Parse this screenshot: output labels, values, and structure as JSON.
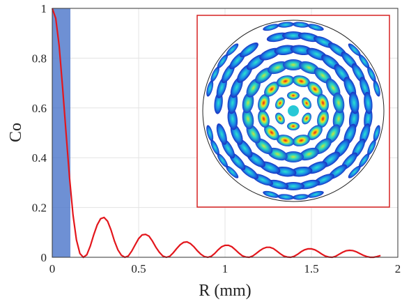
{
  "chart_data": {
    "type": "line",
    "title": "",
    "xlabel": "R (mm)",
    "ylabel": "Co",
    "xlim": [
      0,
      2
    ],
    "ylim": [
      0,
      1
    ],
    "xticks": [
      "0",
      "0.5",
      "1",
      "1.5",
      "2"
    ],
    "yticks": [
      "0",
      "0.2",
      "0.4",
      "0.6",
      "0.8",
      "1"
    ],
    "grid": true,
    "shaded_region": {
      "x": [
        0,
        0.105
      ],
      "color": "#4a74c9"
    },
    "series": [
      {
        "color": "#e3161c",
        "x": [
          0,
          0.02,
          0.04,
          0.06,
          0.08,
          0.1,
          0.12,
          0.14,
          0.16,
          0.18,
          0.2,
          0.22,
          0.24,
          0.26,
          0.28,
          0.3,
          0.32,
          0.34,
          0.36,
          0.38,
          0.4,
          0.42,
          0.44,
          0.46,
          0.48,
          0.5,
          0.52,
          0.54,
          0.56,
          0.58,
          0.6,
          0.62,
          0.64,
          0.66,
          0.68,
          0.7,
          0.72,
          0.74,
          0.76,
          0.78,
          0.8,
          0.82,
          0.84,
          0.86,
          0.88,
          0.9,
          0.92,
          0.94,
          0.96,
          0.98,
          1.0,
          1.02,
          1.04,
          1.06,
          1.08,
          1.1,
          1.12,
          1.14,
          1.16,
          1.18,
          1.2,
          1.22,
          1.24,
          1.26,
          1.28,
          1.3,
          1.32,
          1.34,
          1.36,
          1.38,
          1.4,
          1.42,
          1.44,
          1.46,
          1.48,
          1.5,
          1.52,
          1.54,
          1.56,
          1.58,
          1.6,
          1.62,
          1.64,
          1.66,
          1.68,
          1.7,
          1.72,
          1.74,
          1.76,
          1.78,
          1.8,
          1.82,
          1.84,
          1.86,
          1.88,
          1.9
        ],
        "values": [
          1.0,
          0.96,
          0.85,
          0.68,
          0.5,
          0.32,
          0.17,
          0.07,
          0.015,
          0.0,
          0.01,
          0.045,
          0.09,
          0.13,
          0.155,
          0.16,
          0.145,
          0.11,
          0.065,
          0.03,
          0.008,
          0.0,
          0.005,
          0.025,
          0.05,
          0.075,
          0.09,
          0.092,
          0.085,
          0.065,
          0.04,
          0.02,
          0.005,
          0.0,
          0.004,
          0.018,
          0.035,
          0.05,
          0.06,
          0.062,
          0.055,
          0.042,
          0.026,
          0.012,
          0.003,
          0.0,
          0.004,
          0.015,
          0.03,
          0.042,
          0.048,
          0.048,
          0.042,
          0.03,
          0.017,
          0.006,
          0.001,
          0.0,
          0.005,
          0.015,
          0.026,
          0.035,
          0.04,
          0.04,
          0.035,
          0.025,
          0.014,
          0.005,
          0.001,
          0.0,
          0.004,
          0.012,
          0.022,
          0.03,
          0.034,
          0.034,
          0.03,
          0.022,
          0.013,
          0.005,
          0.001,
          0.0,
          0.004,
          0.012,
          0.02,
          0.026,
          0.028,
          0.027,
          0.022,
          0.015,
          0.008,
          0.003,
          0.0,
          0.0,
          0.003,
          0.007
        ]
      }
    ],
    "inset": {
      "border_color": "#d62020",
      "description_free": true
    }
  }
}
